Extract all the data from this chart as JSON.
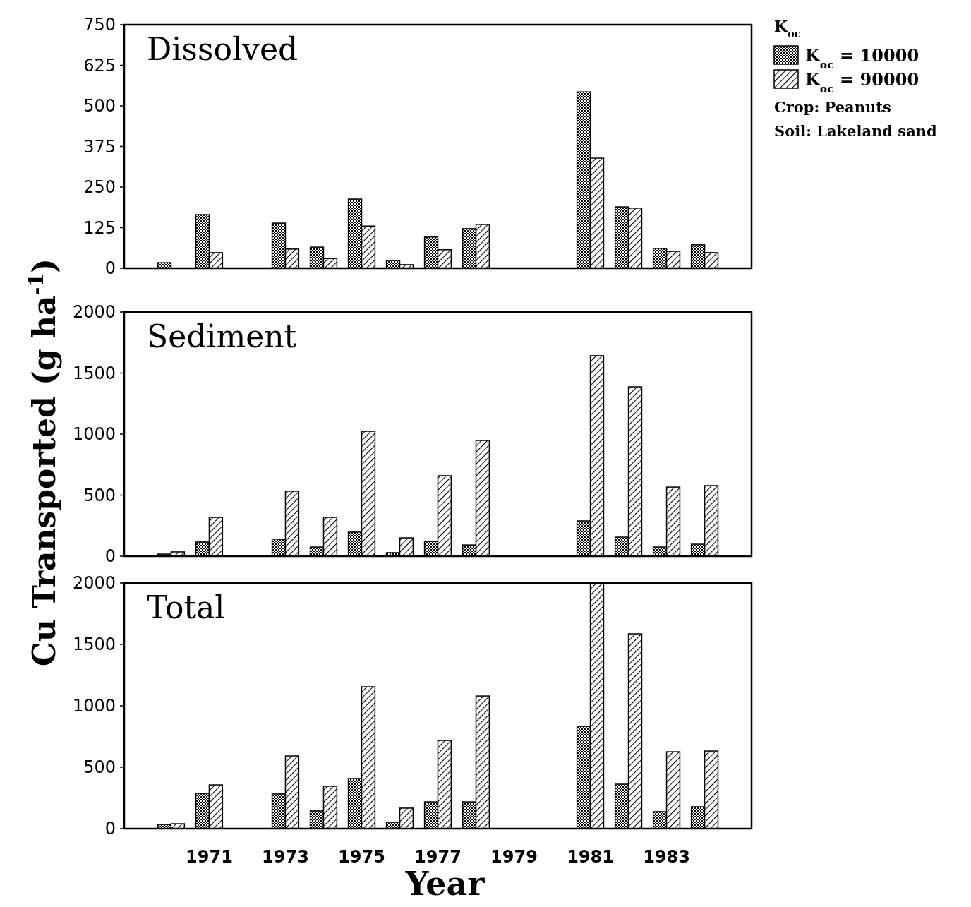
{
  "chart_data": [
    {
      "type": "bar",
      "title": "Dissolved",
      "legend_title": "K$_{oc}$",
      "legend": "right",
      "annotations": [
        "Crop: Peanuts",
        "Soil: Lakeland sand"
      ],
      "tick_labels": "y",
      "categories": [
        "1970",
        "1971",
        "1972",
        "1973",
        "1974",
        "1975",
        "1976",
        "1977",
        "1978",
        "1979",
        "1980",
        "1981",
        "1982",
        "1983",
        "1984"
      ],
      "series": [
        {
          "name": "K$_{oc}$ = 10000",
          "color": "#000000",
          "values": [
            17,
            165,
            null,
            139,
            65,
            213,
            24,
            96,
            122,
            null,
            null,
            543,
            189,
            61,
            72
          ]
        },
        {
          "name": "K$_{oc}$ = 90000",
          "color": "#000001",
          "values": [
            null,
            48,
            null,
            59,
            30,
            130,
            11,
            57,
            135,
            null,
            null,
            339,
            185,
            52,
            48
          ]
        }
      ],
      "ylim": [
        0,
        750
      ],
      "yticks": [
        0,
        125,
        250,
        375,
        500,
        625,
        750
      ],
      "grid": false
    },
    {
      "type": "bar",
      "title": "Sediment",
      "ylabel": "Cu Transported (g ha$^{-1}$)",
      "tick_labels": "y",
      "categories": [
        "1970",
        "1971",
        "1972",
        "1973",
        "1974",
        "1975",
        "1976",
        "1977",
        "1978",
        "1979",
        "1980",
        "1981",
        "1982",
        "1983",
        "1984"
      ],
      "series": [
        {
          "color": "#000000",
          "values": [
            17,
            116,
            null,
            139,
            75,
            197,
            29,
            121,
            92,
            null,
            null,
            289,
            156,
            75,
            98
          ]
        },
        {
          "color": "#000001",
          "values": [
            35,
            318,
            null,
            532,
            318,
            1023,
            150,
            659,
            948,
            null,
            null,
            1642,
            1387,
            566,
            578
          ]
        }
      ],
      "ylim": [
        0,
        2000
      ],
      "yticks": [
        0,
        500,
        1000,
        1500,
        2000
      ],
      "grid": false
    },
    {
      "type": "bar",
      "title": "Total",
      "xlabel": "Year",
      "categories": [
        null,
        "1971",
        null,
        "1973",
        null,
        "1975",
        null,
        "1977",
        null,
        "1979",
        null,
        "1981",
        null,
        "1983",
        null
      ],
      "series": [
        {
          "color": "#000000",
          "values": [
            34,
            287,
            null,
            282,
            144,
            408,
            52,
            218,
            218,
            null,
            null,
            833,
            362,
            138,
            178
          ]
        },
        {
          "color": "#000001",
          "values": [
            40,
            356,
            null,
            592,
            345,
            1155,
            167,
            718,
            1080,
            null,
            null,
            2000,
            1586,
            626,
            632
          ]
        }
      ],
      "ylim": [
        0,
        2000
      ],
      "yticks": [
        0,
        500,
        1000,
        1500,
        2000
      ],
      "grid": false
    }
  ]
}
